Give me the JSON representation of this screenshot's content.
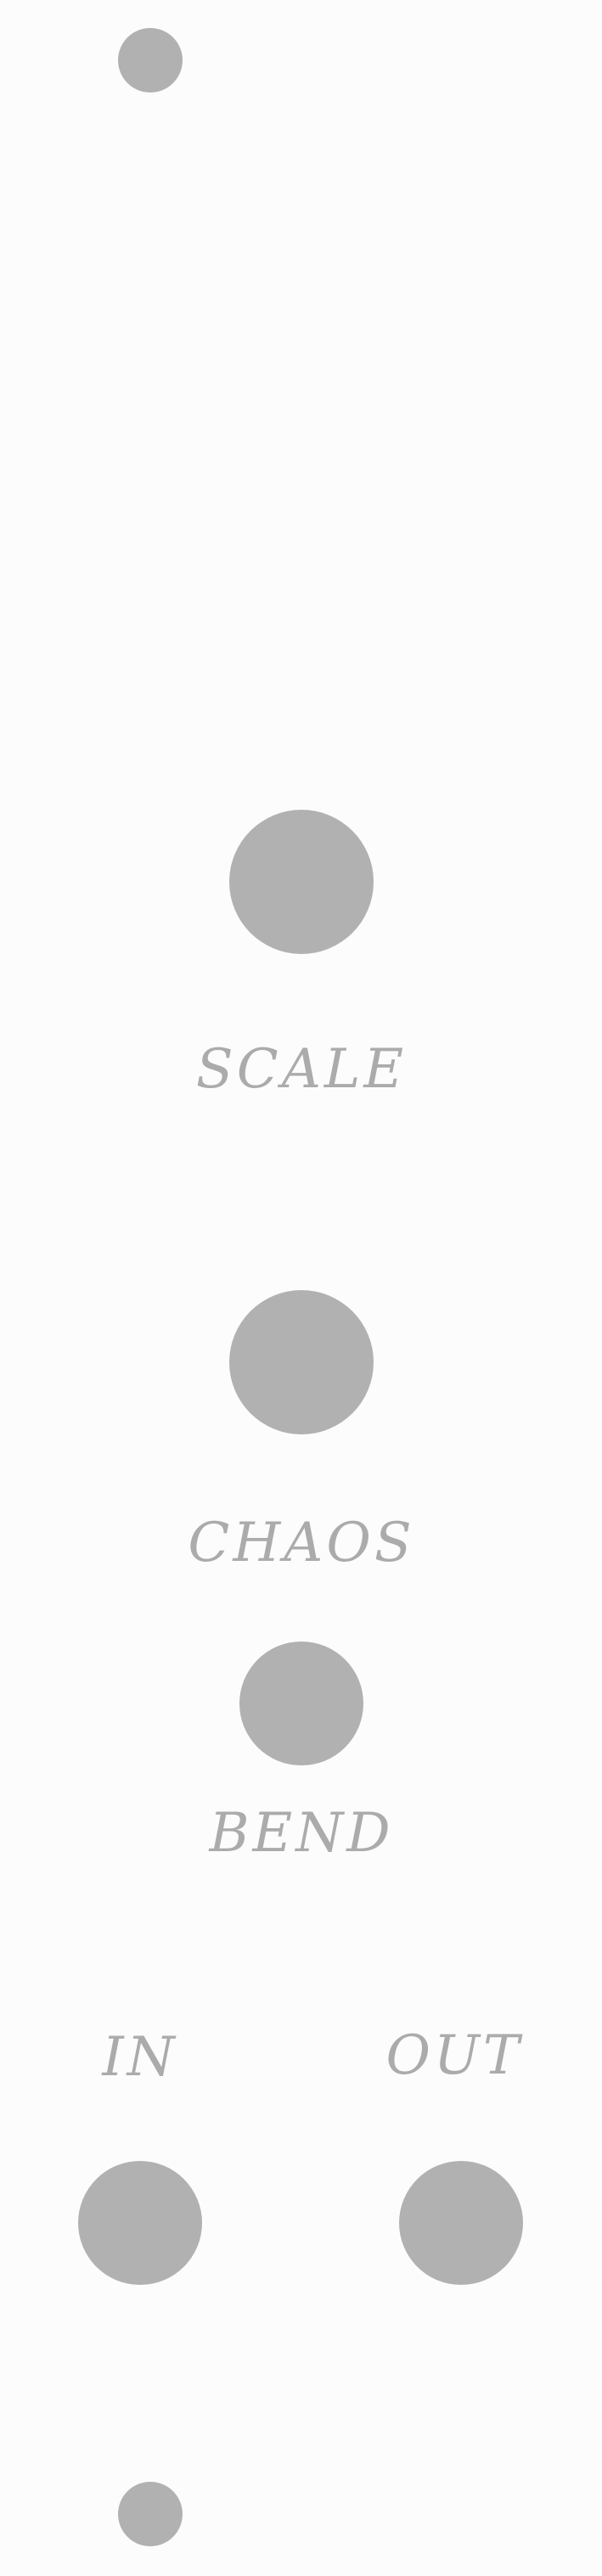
{
  "panel": {
    "background_color": "#fcfcfc",
    "component_color": "#b1b1b1",
    "label_color": "#ababab"
  },
  "controls": {
    "scale": {
      "label": "SCALE"
    },
    "chaos": {
      "label": "CHAOS"
    },
    "bend": {
      "label": "BEND"
    }
  },
  "jacks": {
    "in": {
      "label": "IN"
    },
    "out": {
      "label": "OUT"
    }
  }
}
